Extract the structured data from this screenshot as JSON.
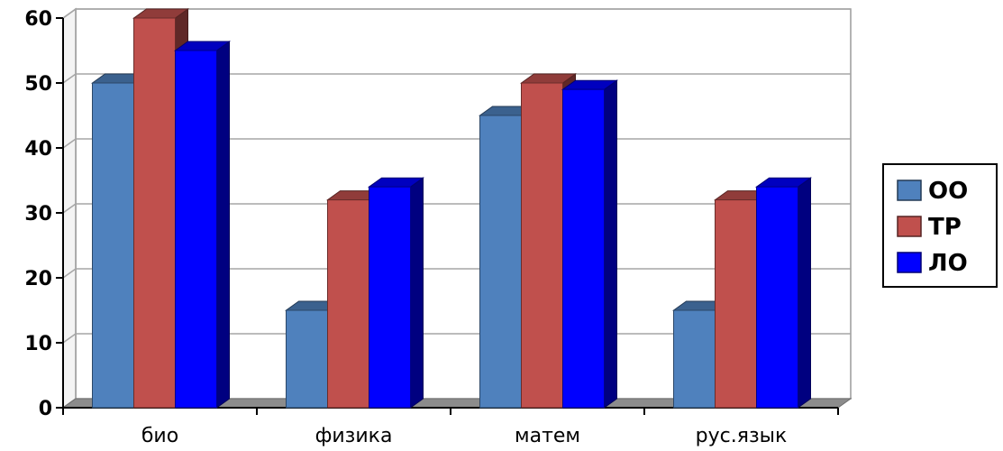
{
  "chart_data": {
    "type": "bar",
    "title": "",
    "xlabel": "",
    "ylabel": "",
    "ylim": [
      0,
      60
    ],
    "yticks": [
      0,
      10,
      20,
      30,
      40,
      50,
      60
    ],
    "grid": true,
    "legend_position": "right",
    "categories": [
      "био",
      "физика",
      "матем",
      "рус.язык"
    ],
    "series": [
      {
        "name": "ОО",
        "color": "#4f81bd",
        "values": [
          50,
          15,
          45,
          15
        ]
      },
      {
        "name": "ТР",
        "color": "#c0504d",
        "values": [
          60,
          32,
          50,
          32
        ]
      },
      {
        "name": "ЛО",
        "color": "#0000ff",
        "values": [
          55,
          34,
          49,
          34
        ]
      }
    ]
  }
}
